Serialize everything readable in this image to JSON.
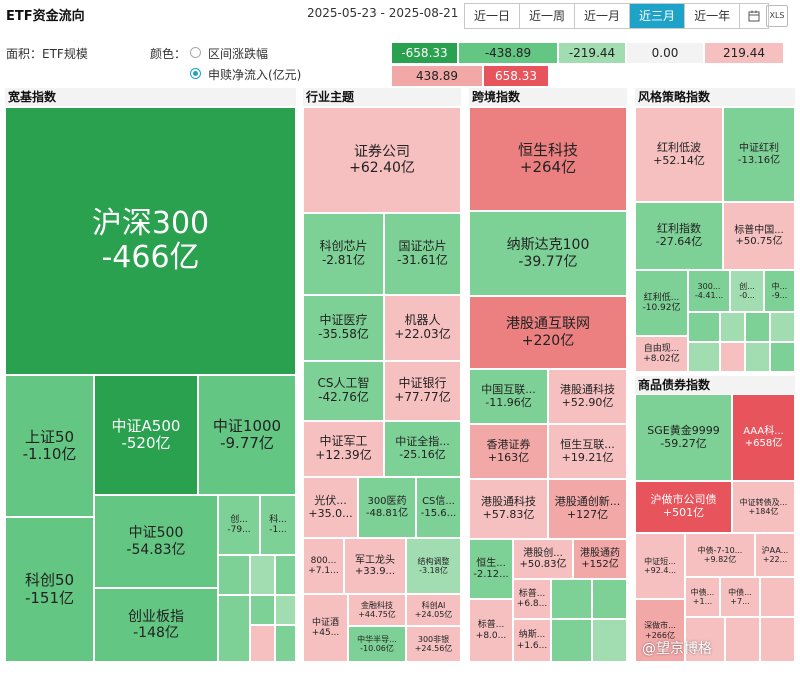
{
  "header": {
    "title": "ETF资金流向",
    "date_range": "2025-05-23 - 2025-08-21",
    "periods": [
      "近一日",
      "近一周",
      "近一月",
      "近三月",
      "近一年"
    ],
    "active_period": "近三月",
    "export_label": "XLS"
  },
  "controls": {
    "area_label": "面积：ETF规模",
    "color_label": "颜色：",
    "option_change": "区间涨跌幅",
    "option_netflow": "申赎净流入(亿元)",
    "selected": "申赎净流入(亿元)"
  },
  "legend": {
    "row1": [
      "-658.33",
      "-438.89",
      "-219.44",
      "0.00",
      "219.44"
    ],
    "row2": [
      "438.89",
      "658.33"
    ]
  },
  "sections": {
    "broad": "宽基指数",
    "industry": "行业主题",
    "cross": "跨境指数",
    "style": "风格策略指数",
    "commodity": "商品债券指数"
  },
  "tiles": {
    "hs300": {
      "name": "沪深300",
      "value": "-466亿"
    },
    "sz50": {
      "name": "上证50",
      "value": "-1.10亿"
    },
    "zz_a500": {
      "name": "中证A500",
      "value": "-520亿"
    },
    "zz1000": {
      "name": "中证1000",
      "value": "-9.77亿"
    },
    "kc50": {
      "name": "科创50",
      "value": "-151亿"
    },
    "zz500": {
      "name": "中证500",
      "value": "-54.83亿"
    },
    "cyb": {
      "name": "创业板指",
      "value": "-148亿"
    },
    "chuang": {
      "name": "创...",
      "value": "-79..."
    },
    "ke": {
      "name": "科...",
      "value": "-1..."
    },
    "quanshang": {
      "name": "证券公司",
      "value": "+62.40亿"
    },
    "kcxp": {
      "name": "科创芯片",
      "value": "-2.81亿"
    },
    "gzxp": {
      "name": "国证芯片",
      "value": "-31.61亿"
    },
    "zzyl": {
      "name": "中证医疗",
      "value": "-35.58亿"
    },
    "jqr": {
      "name": "机器人",
      "value": "+22.03亿"
    },
    "csrgzn": {
      "name": "CS人工智",
      "value": "-42.76亿"
    },
    "zzyh": {
      "name": "中证银行",
      "value": "+77.77亿"
    },
    "zzjg": {
      "name": "中证军工",
      "value": "+12.39亿"
    },
    "zzqz": {
      "name": "中证全指...",
      "value": "-25.16亿"
    },
    "gf": {
      "name": "光伏...",
      "value": "+35.0..."
    },
    "yy300": {
      "name": "300医药",
      "value": "-48.81亿"
    },
    "csxx": {
      "name": "CS信...",
      "value": "-15.6..."
    },
    "b800": {
      "name": "800...",
      "value": "+7.1..."
    },
    "jglt": {
      "name": "军工龙头",
      "value": "+33.9..."
    },
    "jgcf": {
      "name": "结构调整",
      "value": "-3.18亿"
    },
    "zzj": {
      "name": "中证酒",
      "value": "+45..."
    },
    "jrkj": {
      "name": "金融科技",
      "value": "+44.75亿"
    },
    "kcai": {
      "name": "科创AI",
      "value": "+24.05亿"
    },
    "zhbdt": {
      "name": "中华半导...",
      "value": "-10.06亿"
    },
    "fyh300": {
      "name": "300非银",
      "value": "+24.56亿"
    },
    "hskj": {
      "name": "恒生科技",
      "value": "+264亿"
    },
    "nsdk": {
      "name": "纳斯达克100",
      "value": "-39.77亿"
    },
    "ggthlw": {
      "name": "港股通互联网",
      "value": "+220亿"
    },
    "zghl": {
      "name": "中国互联...",
      "value": "-11.96亿"
    },
    "ggtkj": {
      "name": "港股通科技",
      "value": "+52.90亿"
    },
    "xgzq": {
      "name": "香港证券",
      "value": "+163亿"
    },
    "hshl": {
      "name": "恒生互联...",
      "value": "+19.21亿"
    },
    "ggtkj2": {
      "name": "港股通科技",
      "value": "+57.83亿"
    },
    "ggtcx": {
      "name": "港股通创新...",
      "value": "+127亿"
    },
    "hs": {
      "name": "恒生...",
      "value": "-2.12..."
    },
    "ggc": {
      "name": "港股创...",
      "value": "+50.83亿"
    },
    "ggyy": {
      "name": "港股通药",
      "value": "+152亿"
    },
    "bp": {
      "name": "标普...",
      "value": "+6.8..."
    },
    "bp2": {
      "name": "标普...",
      "value": "+8.0..."
    },
    "nsk": {
      "name": "纳斯...",
      "value": "+1.6..."
    },
    "hldb": {
      "name": "红利低波",
      "value": "+52.14亿"
    },
    "zzhl": {
      "name": "中证红利",
      "value": "-13.16亿"
    },
    "hlzs": {
      "name": "红利指数",
      "value": "-27.64亿"
    },
    "bpzg": {
      "name": "标普中国...",
      "value": "+50.75亿"
    },
    "hld": {
      "name": "红利低...",
      "value": "-10.92亿"
    },
    "s300": {
      "name": "300...",
      "value": "-4.41..."
    },
    "chuang2": {
      "name": "创...",
      "value": "-0..."
    },
    "zhong": {
      "name": "中...",
      "value": "-9..."
    },
    "zyx": {
      "name": "自由现...",
      "value": "+8.02亿"
    },
    "sge": {
      "name": "SGE黄金9999",
      "value": "-59.27亿"
    },
    "aaa": {
      "name": "AAA科...",
      "value": "+658亿"
    },
    "hzsgs": {
      "name": "沪做市公司债",
      "value": "+501亿"
    },
    "zzzz": {
      "name": "中证转债及...",
      "value": "+184亿"
    },
    "zzd": {
      "name": "中证短...",
      "value": "+92.4..."
    },
    "zz710": {
      "name": "中债-7-10...",
      "value": "+9.82亿"
    },
    "haa": {
      "name": "沪AA...",
      "value": "+22..."
    },
    "zz2": {
      "name": "中债...",
      "value": "+1..."
    },
    "zz3": {
      "name": "中债...",
      "value": "+7..."
    },
    "szs": {
      "name": "深做市...",
      "value": "+266亿"
    }
  },
  "watermark": "@望京博格"
}
